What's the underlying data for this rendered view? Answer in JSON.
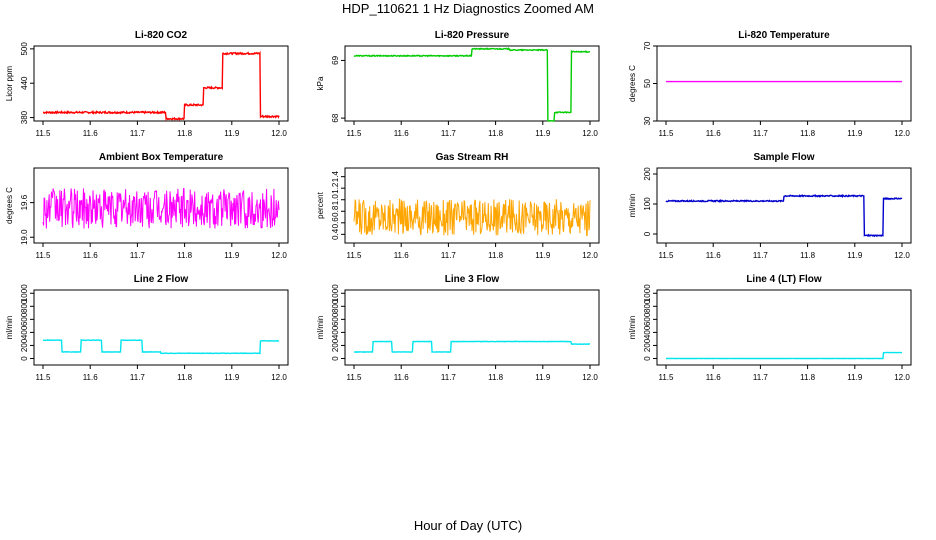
{
  "title": "HDP_110621  1 Hz Diagnostics Zoomed AM",
  "xlabel": "Hour of Day (UTC)",
  "chart_data": [
    {
      "type": "line",
      "title": "Li-820 CO2",
      "ylabel": "Licor ppm",
      "color": "#ff0000",
      "xlim": [
        11.5,
        12.0
      ],
      "xticks": [
        11.5,
        11.6,
        11.7,
        11.8,
        11.9,
        12.0
      ],
      "ylim": [
        374,
        505
      ],
      "yticks": [
        380,
        440,
        500
      ],
      "steps": [
        [
          11.5,
          11.76,
          389
        ],
        [
          11.76,
          11.8,
          378
        ],
        [
          11.8,
          11.84,
          402
        ],
        [
          11.84,
          11.88,
          432
        ],
        [
          11.88,
          11.96,
          492
        ],
        [
          11.96,
          12.0,
          382
        ]
      ],
      "noise": 1.5
    },
    {
      "type": "line",
      "title": "Li-820 Pressure",
      "ylabel": "kPa",
      "color": "#00cc00",
      "xlim": [
        11.5,
        12.0
      ],
      "xticks": [
        11.5,
        11.6,
        11.7,
        11.8,
        11.9,
        12.0
      ],
      "ylim": [
        67.95,
        69.25
      ],
      "yticks": [
        68.0,
        69.0
      ],
      "steps": [
        [
          11.5,
          11.75,
          69.08
        ],
        [
          11.75,
          11.83,
          69.2
        ],
        [
          11.83,
          11.91,
          69.18
        ],
        [
          11.91,
          11.925,
          67.95
        ],
        [
          11.925,
          11.96,
          68.1
        ],
        [
          11.96,
          12.0,
          69.15
        ]
      ],
      "noise": 0.008
    },
    {
      "type": "line",
      "title": "Li-820 Temperature",
      "ylabel": "degrees C",
      "color": "#ff00ff",
      "xlim": [
        11.5,
        12.0
      ],
      "xticks": [
        11.5,
        11.6,
        11.7,
        11.8,
        11.9,
        12.0
      ],
      "ylim": [
        30,
        70
      ],
      "yticks": [
        30,
        50,
        70
      ],
      "steps": [
        [
          11.5,
          12.0,
          51
        ]
      ],
      "noise": 0
    },
    {
      "type": "line",
      "title": "Ambient Box Temperature",
      "ylabel": "degrees C",
      "color": "#ff00ff",
      "xlim": [
        11.5,
        12.0
      ],
      "xticks": [
        11.5,
        11.6,
        11.7,
        11.8,
        11.9,
        12.0
      ],
      "ylim": [
        18.9,
        20.2
      ],
      "yticks": [
        19.0,
        19.6
      ],
      "steps": [
        [
          11.5,
          12.0,
          19.5
        ]
      ],
      "noise": 0.35
    },
    {
      "type": "line",
      "title": "Gas Stream RH",
      "ylabel": "percent",
      "color": "#ffa500",
      "xlim": [
        11.5,
        12.0
      ],
      "xticks": [
        11.5,
        11.6,
        11.7,
        11.8,
        11.9,
        12.0
      ],
      "ylim": [
        0.25,
        1.55
      ],
      "yticks": [
        0.4,
        0.6,
        0.8,
        1.0,
        1.2,
        1.4
      ],
      "steps": [
        [
          11.5,
          12.0,
          0.7
        ]
      ],
      "noise": 0.32
    },
    {
      "type": "line",
      "title": "Sample Flow",
      "ylabel": "ml/min",
      "color": "#0000cc",
      "xlim": [
        11.5,
        12.0
      ],
      "xticks": [
        11.5,
        11.6,
        11.7,
        11.8,
        11.9,
        12.0
      ],
      "ylim": [
        -30,
        220
      ],
      "yticks": [
        0,
        100,
        200
      ],
      "steps": [
        [
          11.5,
          11.75,
          110
        ],
        [
          11.75,
          11.92,
          127
        ],
        [
          11.92,
          11.96,
          -5
        ],
        [
          11.96,
          12.0,
          118
        ]
      ],
      "noise": 2
    },
    {
      "type": "line",
      "title": "Line 2 Flow",
      "ylabel": "ml/min",
      "color": "#00e5ee",
      "xlim": [
        11.5,
        12.0
      ],
      "xticks": [
        11.5,
        11.6,
        11.7,
        11.8,
        11.9,
        12.0
      ],
      "ylim": [
        -100,
        1050
      ],
      "yticks": [
        0,
        200,
        400,
        600,
        800,
        1000
      ],
      "steps": [
        [
          11.5,
          11.54,
          280
        ],
        [
          11.54,
          11.58,
          100
        ],
        [
          11.58,
          11.625,
          280
        ],
        [
          11.625,
          11.665,
          100
        ],
        [
          11.665,
          11.71,
          280
        ],
        [
          11.71,
          11.75,
          100
        ],
        [
          11.75,
          11.96,
          80
        ],
        [
          11.96,
          12.0,
          270
        ]
      ],
      "noise": 3
    },
    {
      "type": "line",
      "title": "Line 3 Flow",
      "ylabel": "ml/min",
      "color": "#00e5ee",
      "xlim": [
        11.5,
        12.0
      ],
      "xticks": [
        11.5,
        11.6,
        11.7,
        11.8,
        11.9,
        12.0
      ],
      "ylim": [
        -100,
        1050
      ],
      "yticks": [
        0,
        200,
        400,
        600,
        800,
        1000
      ],
      "steps": [
        [
          11.5,
          11.54,
          100
        ],
        [
          11.54,
          11.58,
          260
        ],
        [
          11.58,
          11.625,
          100
        ],
        [
          11.625,
          11.665,
          260
        ],
        [
          11.665,
          11.705,
          100
        ],
        [
          11.705,
          11.96,
          260
        ],
        [
          11.96,
          12.0,
          220
        ]
      ],
      "noise": 3
    },
    {
      "type": "line",
      "title": "Line 4 (LT) Flow",
      "ylabel": "ml/min",
      "color": "#00e5ee",
      "xlim": [
        11.5,
        12.0
      ],
      "xticks": [
        11.5,
        11.6,
        11.7,
        11.8,
        11.9,
        12.0
      ],
      "ylim": [
        -100,
        1050
      ],
      "yticks": [
        0,
        200,
        400,
        600,
        800,
        1000
      ],
      "steps": [
        [
          11.5,
          11.96,
          0
        ],
        [
          11.96,
          12.0,
          90
        ]
      ],
      "noise": 1
    }
  ]
}
